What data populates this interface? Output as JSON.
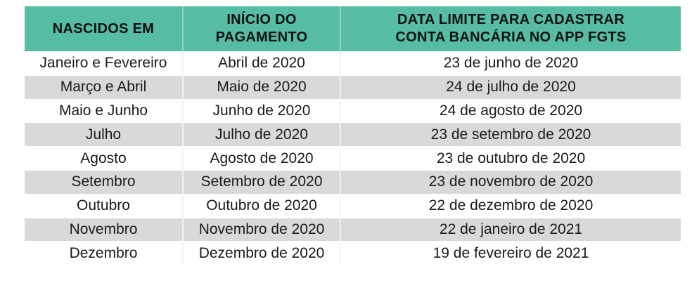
{
  "colors": {
    "header_bg": "#56BCA4",
    "stripe_bg": "#D9D9D9",
    "row_bg": "#FFFFFF",
    "text": "#1A1A1A"
  },
  "table": {
    "headers": [
      {
        "line1": "NASCIDOS EM",
        "line2": ""
      },
      {
        "line1": "INÍCIO DO",
        "line2": "PAGAMENTO"
      },
      {
        "line1": "DATA LIMITE PARA CADASTRAR",
        "line2": "CONTA BANCÁRIA NO APP FGTS"
      }
    ],
    "rows": [
      {
        "nascidos": "Janeiro e Fevereiro",
        "inicio": "Abril de 2020",
        "data_limite": "23 de junho de 2020"
      },
      {
        "nascidos": "Março e Abril",
        "inicio": "Maio de 2020",
        "data_limite": "24 de julho de 2020"
      },
      {
        "nascidos": "Maio e Junho",
        "inicio": "Junho de 2020",
        "data_limite": "24 de agosto de 2020"
      },
      {
        "nascidos": "Julho",
        "inicio": "Julho de 2020",
        "data_limite": "23 de setembro de 2020"
      },
      {
        "nascidos": "Agosto",
        "inicio": "Agosto de 2020",
        "data_limite": "23 de outubro de 2020"
      },
      {
        "nascidos": "Setembro",
        "inicio": "Setembro de 2020",
        "data_limite": "23 de novembro de 2020"
      },
      {
        "nascidos": "Outubro",
        "inicio": "Outubro de 2020",
        "data_limite": "22 de dezembro de 2020"
      },
      {
        "nascidos": "Novembro",
        "inicio": "Novembro de 2020",
        "data_limite": "22 de janeiro de 2021"
      },
      {
        "nascidos": "Dezembro",
        "inicio": "Dezembro de 2020",
        "data_limite": "19 de fevereiro de 2021"
      }
    ]
  }
}
